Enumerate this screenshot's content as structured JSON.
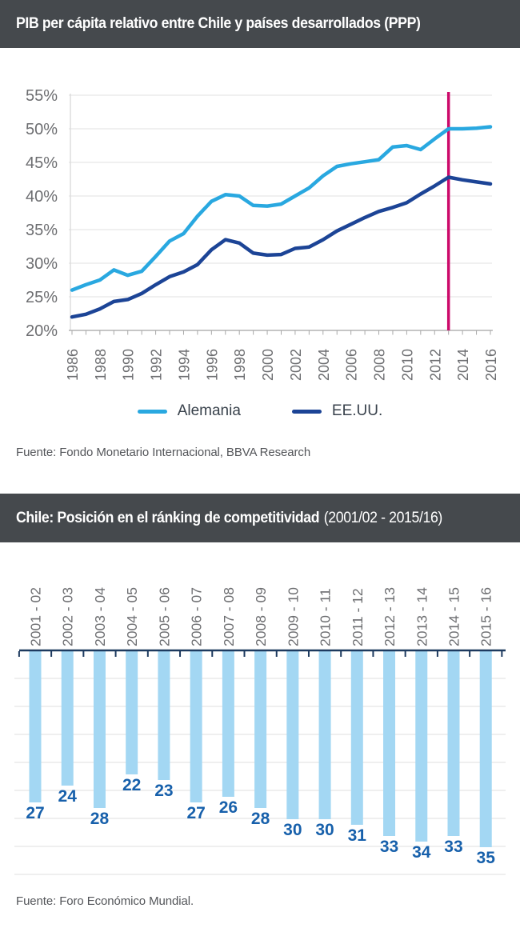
{
  "header1": {
    "title": "PIB per cápita relativo entre Chile y países desarrollados (PPP)"
  },
  "source1": "Fuente: Fondo Monetario Internacional, BBVA Research",
  "header2": {
    "title_bold": "Chile: Posición en el ránking de competitividad",
    "title_suffix": "(2001/02 - 2015/16)"
  },
  "source2": "Fuente: Foro Económico Mundial.",
  "colors": {
    "header_bg": "#45494d",
    "alemania_line": "#29a8e0",
    "eeuu_line": "#1c4496",
    "forecast_marker": "#cc0a6a",
    "bar_fill": "#a3d7f3",
    "bar_label": "#1760ab",
    "bar_axis": "#1d3a5f",
    "axis_text": "#6d6e71",
    "gridline": "#e7e7e7"
  },
  "chart_data": [
    {
      "type": "line",
      "title": "PIB per cápita relativo entre Chile y países desarrollados (PPP)",
      "x": [
        1986,
        1987,
        1988,
        1989,
        1990,
        1991,
        1992,
        1993,
        1994,
        1995,
        1996,
        1997,
        1998,
        1999,
        2000,
        2001,
        2002,
        2003,
        2004,
        2005,
        2006,
        2007,
        2008,
        2009,
        2010,
        2011,
        2012,
        2013,
        2014,
        2015,
        2016
      ],
      "x_tick_labels": [
        "1986",
        "1988",
        "1990",
        "1992",
        "1994",
        "1996",
        "1998",
        "2000",
        "2002",
        "2004",
        "2006",
        "2008",
        "2010",
        "2012",
        "2014",
        "2016"
      ],
      "series": [
        {
          "name": "Alemania",
          "color": "#29a8e0",
          "values": [
            26.0,
            26.8,
            27.5,
            29.0,
            28.2,
            28.8,
            31.0,
            33.3,
            34.4,
            37.0,
            39.2,
            40.2,
            40.0,
            38.6,
            38.5,
            38.8,
            40.0,
            41.2,
            43.0,
            44.4,
            44.8,
            45.1,
            45.4,
            47.3,
            47.5,
            46.9,
            48.5,
            50.0,
            50.0,
            50.1,
            50.3
          ]
        },
        {
          "name": "EE.UU.",
          "color": "#1c4496",
          "values": [
            22.0,
            22.4,
            23.2,
            24.3,
            24.6,
            25.5,
            26.8,
            28.0,
            28.7,
            29.8,
            32.0,
            33.5,
            33.0,
            31.5,
            31.2,
            31.3,
            32.2,
            32.4,
            33.5,
            34.8,
            35.8,
            36.8,
            37.7,
            38.3,
            39.0,
            40.3,
            41.5,
            42.8,
            42.4,
            42.1,
            41.8
          ]
        }
      ],
      "ylim": [
        20,
        55
      ],
      "y_ticks": [
        "20%",
        "25%",
        "30%",
        "35%",
        "40%",
        "45%",
        "50%",
        "55%"
      ],
      "y_tick_values": [
        20,
        25,
        30,
        35,
        40,
        45,
        50,
        55
      ],
      "annotation_line": {
        "x": 2013,
        "color": "#cc0a6a"
      },
      "grid": true,
      "legend_position": "bottom"
    },
    {
      "type": "bar",
      "title": "Chile: Posición en el ránking de competitividad (2001/02 - 2015/16)",
      "categories": [
        "2001 - 02",
        "2002 - 03",
        "2003 - 04",
        "2004 - 05",
        "2005 - 06",
        "2006 - 07",
        "2007 - 08",
        "2008 - 09",
        "2009 - 10",
        "2010 - 11",
        "2011 - 12",
        "2012 - 13",
        "2013 - 14",
        "2014 - 15",
        "2015 - 16"
      ],
      "values": [
        27,
        24,
        28,
        22,
        23,
        27,
        26,
        28,
        30,
        30,
        31,
        33,
        34,
        33,
        35
      ],
      "orientation": "hanging-from-top",
      "ylim": [
        0,
        40
      ],
      "grid": true,
      "bar_color": "#a3d7f3",
      "label_color": "#1760ab"
    }
  ]
}
